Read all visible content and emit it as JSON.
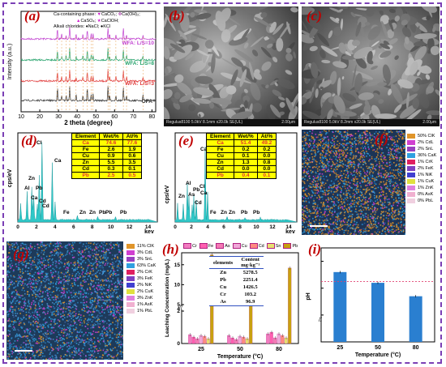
{
  "panels": {
    "a": {
      "label": "(a)"
    },
    "b": {
      "label": "(b)",
      "sem_info": "Regulus8100 5.0kV 8.1mm x20.0k SE(UL)",
      "scale_text": "2.00μm"
    },
    "c": {
      "label": "(c)",
      "sem_info": "Regulus8100 5.0kV 8.2mm x20.0k SE(UL)",
      "scale_text": "2.00μm"
    },
    "d": {
      "label": "(d)"
    },
    "e": {
      "label": "(e)"
    },
    "f": {
      "label": "(f)"
    },
    "g": {
      "label": "(g)"
    },
    "h": {
      "label": "(h)"
    },
    "i": {
      "label": "(i)"
    }
  },
  "xrd": {
    "legend_title": "Ca-containing phase:",
    "legend_items": [
      {
        "symbol": "▼",
        "text": "CaCO₃;",
        "color": "#d020d0"
      },
      {
        "symbol": "✤",
        "text": "Ca(OH)₂;",
        "color": "#b04ab0"
      },
      {
        "symbol": "▲",
        "text": "CaSO₄;",
        "color": "#d020d0"
      },
      {
        "symbol": "★",
        "text": "CaClOH;",
        "color": "#d020d0"
      }
    ],
    "alkali_title": "Alkali chlorides:",
    "alkali_items": [
      {
        "symbol": "♦",
        "text": "NaCl;",
        "color": "#000000"
      },
      {
        "symbol": "●",
        "text": "KCl",
        "color": "#000000"
      }
    ],
    "series": [
      {
        "name": "WFA: L/S=10",
        "color": "#c040d0"
      },
      {
        "name": "WFA: L/S=8",
        "color": "#27a36c"
      },
      {
        "name": "WFA: L/S=3",
        "color": "#e03a3a"
      },
      {
        "name": "OFA",
        "color": "#333333"
      }
    ],
    "xlabel": "2 theta (degree)",
    "ylabel": "Intensity (a.u.)",
    "xticks": [
      "10",
      "20",
      "30",
      "40",
      "50",
      "60",
      "70",
      "80"
    ]
  },
  "eds_d": {
    "headers": [
      "Element",
      "Wet/%",
      "At/%"
    ],
    "rows": [
      [
        "Ca",
        "74.6",
        "77.6"
      ],
      [
        "Fe",
        "2.6",
        "1.9"
      ],
      [
        "Cu",
        "0.9",
        "0.6"
      ],
      [
        "Zn",
        "5.5",
        "3.5"
      ],
      [
        "Cd",
        "0.3",
        "0.1"
      ],
      [
        "Pb",
        "2.5",
        "0.5"
      ]
    ],
    "ylabel": "cps/eV",
    "xlabel": "kev",
    "xticks": [
      "0",
      "2",
      "4",
      "6",
      "8",
      "10",
      "12",
      "14"
    ],
    "peak_labels": [
      "Cl",
      "Ca",
      "Zn",
      "Al",
      "Pb",
      "Ca",
      "Fe",
      "Zn",
      "Zn",
      "Pb",
      "Pb",
      "Pb",
      "Cd",
      "Cd"
    ]
  },
  "eds_e": {
    "headers": [
      "Element",
      "Wet/%",
      "At/%"
    ],
    "rows": [
      [
        "Ca",
        "51.4",
        "49.2"
      ],
      [
        "Fe",
        "0.2",
        "0.2"
      ],
      [
        "Cu",
        "0.1",
        "0.0"
      ],
      [
        "Zn",
        "1.3",
        "0.8"
      ],
      [
        "Cd",
        "0.0",
        "0.0"
      ],
      [
        "Pb",
        "0.4",
        "0.1"
      ]
    ],
    "ylabel": "cps/eV",
    "xlabel": "kev",
    "xticks": [
      "0",
      "2",
      "4",
      "6",
      "8",
      "10",
      "12",
      "14"
    ],
    "peak_labels": [
      "Ca",
      "Al",
      "Zn",
      "As",
      "Pb",
      "Cl",
      "Ca",
      "Cd",
      "Fe",
      "Zn",
      "Zn",
      "Pb",
      "Pb"
    ]
  },
  "map_f_legend": [
    {
      "text": "50% ClK",
      "color": "#e0952a"
    },
    {
      "text": "2% CdL",
      "color": "#d040d0"
    },
    {
      "text": "2% SnL",
      "color": "#9a40c0"
    },
    {
      "text": "36% CaK",
      "color": "#30a0e0"
    },
    {
      "text": "1% CrK",
      "color": "#e02060"
    },
    {
      "text": "2% FeK",
      "color": "#8040c0"
    },
    {
      "text": "1% NiK",
      "color": "#4040d0"
    },
    {
      "text": "1% CuK",
      "color": "#e0e040"
    },
    {
      "text": "1% ZnK",
      "color": "#e080e0"
    },
    {
      "text": "0% AsK",
      "color": "#f0b0d0"
    },
    {
      "text": "0% PbL",
      "color": "#f0d0e0"
    }
  ],
  "map_g_legend": [
    {
      "text": "11% ClK",
      "color": "#e0952a"
    },
    {
      "text": "3% CdL",
      "color": "#d040d0"
    },
    {
      "text": "3% SnL",
      "color": "#9a40c0"
    },
    {
      "text": "63% CaK",
      "color": "#30a0e0"
    },
    {
      "text": "2% CrK",
      "color": "#e02060"
    },
    {
      "text": "3% FeK",
      "color": "#8040c0"
    },
    {
      "text": "2% NiK",
      "color": "#4040d0"
    },
    {
      "text": "2% CuK",
      "color": "#e0e040"
    },
    {
      "text": "3% ZnK",
      "color": "#e080e0"
    },
    {
      "text": "1% AsK",
      "color": "#f0b0d0"
    },
    {
      "text": "1% PbL",
      "color": "#f0d0e0"
    }
  ],
  "chart_data": [
    {
      "type": "bar",
      "panel": "h",
      "ylabel": "Leaching Concentration (mg/L)",
      "xlabel": "Temperature (°C)",
      "categories": [
        "25",
        "50",
        "80"
      ],
      "ylim": [
        0,
        18
      ],
      "yticks": [
        0,
        2,
        4,
        5,
        10,
        15
      ],
      "series": [
        {
          "name": "Cr",
          "color": "#f27cc0",
          "values": [
            0.55,
            0.5,
            0.6
          ]
        },
        {
          "name": "Fe",
          "color": "#ff5fb0",
          "values": [
            0.4,
            0.35,
            0.7
          ]
        },
        {
          "name": "As",
          "color": "#f47ab4",
          "values": [
            0.3,
            0.25,
            0.35
          ]
        },
        {
          "name": "Cu",
          "color": "#f0a8d8",
          "values": [
            0.5,
            0.45,
            0.6
          ]
        },
        {
          "name": "Cd",
          "color": "#ff8a80",
          "values": [
            0.45,
            0.4,
            0.5
          ]
        },
        {
          "name": "Sn",
          "color": "#e8e070",
          "values": [
            0.3,
            0.3,
            0.35
          ]
        },
        {
          "name": "Pb",
          "color": "#c8a010",
          "values": [
            17.5,
            15.4,
            14.2
          ]
        }
      ],
      "inset_table": {
        "headers": [
          "elements",
          "Content\nmg·kg⁻¹"
        ],
        "rows": [
          [
            "Zn",
            "5278.5"
          ],
          [
            "Pb",
            "2251.4"
          ],
          [
            "Cu",
            "1426.5"
          ],
          [
            "Cr",
            "103.2"
          ],
          [
            "As",
            "96.9"
          ]
        ]
      }
    },
    {
      "type": "bar",
      "panel": "i",
      "ylabel": "pH",
      "xlabel": "Temperature (°C)",
      "categories": [
        "25",
        "50",
        "80"
      ],
      "values": [
        13.2,
        12.4,
        11.4
      ],
      "ylim": [
        8,
        15
      ],
      "yticks": [
        8,
        10,
        12,
        14
      ],
      "reference_line": 12.5,
      "color": "#2a7fd0"
    }
  ]
}
